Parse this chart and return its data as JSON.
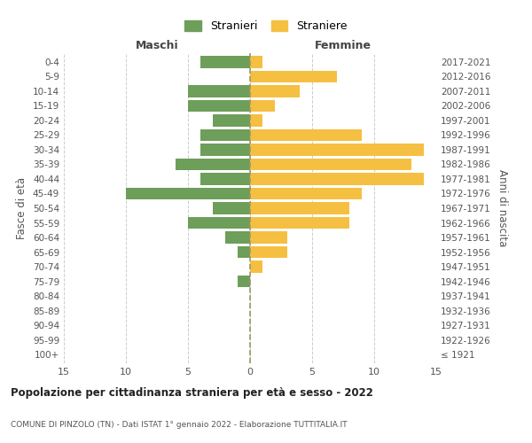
{
  "age_groups": [
    "100+",
    "95-99",
    "90-94",
    "85-89",
    "80-84",
    "75-79",
    "70-74",
    "65-69",
    "60-64",
    "55-59",
    "50-54",
    "45-49",
    "40-44",
    "35-39",
    "30-34",
    "25-29",
    "20-24",
    "15-19",
    "10-14",
    "5-9",
    "0-4"
  ],
  "birth_years": [
    "≤ 1921",
    "1922-1926",
    "1927-1931",
    "1932-1936",
    "1937-1941",
    "1942-1946",
    "1947-1951",
    "1952-1956",
    "1957-1961",
    "1962-1966",
    "1967-1971",
    "1972-1976",
    "1977-1981",
    "1982-1986",
    "1987-1991",
    "1992-1996",
    "1997-2001",
    "2002-2006",
    "2007-2011",
    "2012-2016",
    "2017-2021"
  ],
  "males": [
    0,
    0,
    0,
    0,
    0,
    1,
    0,
    1,
    2,
    5,
    3,
    10,
    4,
    6,
    4,
    4,
    3,
    5,
    5,
    0,
    4
  ],
  "females": [
    0,
    0,
    0,
    0,
    0,
    0,
    1,
    3,
    3,
    8,
    8,
    9,
    14,
    13,
    14,
    9,
    1,
    2,
    4,
    7,
    1
  ],
  "male_color": "#6d9e5a",
  "female_color": "#f5bf42",
  "bar_height": 0.8,
  "xlim": [
    -15,
    15
  ],
  "xticks": [
    -15,
    -10,
    -5,
    0,
    5,
    10,
    15
  ],
  "xticklabels": [
    "15",
    "10",
    "5",
    "0",
    "5",
    "10",
    "15"
  ],
  "title": "Popolazione per cittadinanza straniera per età e sesso - 2022",
  "subtitle": "COMUNE DI PINZOLO (TN) - Dati ISTAT 1° gennaio 2022 - Elaborazione TUTTITALIA.IT",
  "ylabel_left": "Fasce di età",
  "ylabel_right": "Anni di nascita",
  "header_maschi": "Maschi",
  "header_femmine": "Femmine",
  "legend_stranieri": "Stranieri",
  "legend_straniere": "Straniere",
  "bg_color": "#ffffff",
  "grid_color": "#cccccc",
  "vline_color": "#999966"
}
